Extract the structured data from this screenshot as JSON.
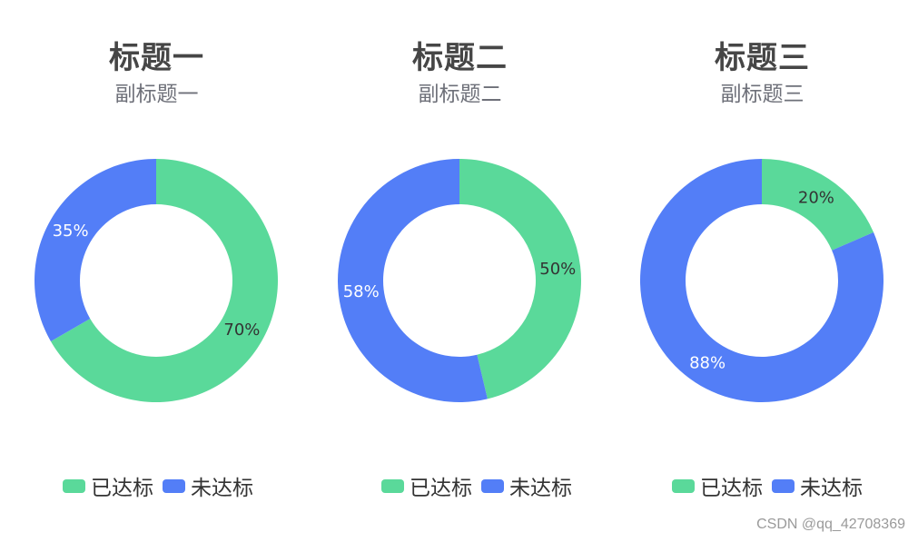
{
  "colors": {
    "reached": "#5ad99a",
    "unreached": "#537ef7"
  },
  "legend_labels": [
    "已达标",
    "未达标"
  ],
  "chart_data": [
    {
      "type": "pie",
      "title": "标题一",
      "subtitle": "副标题一",
      "slices": [
        {
          "label": "已达标",
          "value": 70,
          "display": "70%"
        },
        {
          "label": "未达标",
          "value": 35,
          "display": "35%"
        }
      ]
    },
    {
      "type": "pie",
      "title": "标题二",
      "subtitle": "副标题二",
      "slices": [
        {
          "label": "已达标",
          "value": 50,
          "display": "50%"
        },
        {
          "label": "未达标",
          "value": 58,
          "display": "58%"
        }
      ]
    },
    {
      "type": "pie",
      "title": "标题三",
      "subtitle": "副标题三",
      "slices": [
        {
          "label": "已达标",
          "value": 20,
          "display": "20%"
        },
        {
          "label": "未达标",
          "value": 88,
          "display": "88%"
        }
      ]
    }
  ],
  "watermark": "CSDN @qq_42708369"
}
